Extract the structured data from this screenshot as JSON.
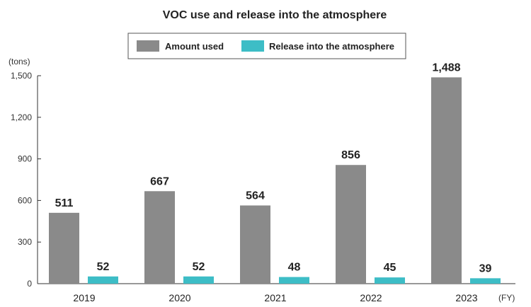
{
  "chart_data": {
    "type": "bar",
    "title": "VOC use and release into the atmosphere",
    "ylabel": "(tons)",
    "xlabel": "(FY)",
    "categories": [
      "2019",
      "2020",
      "2021",
      "2022",
      "2023"
    ],
    "series": [
      {
        "name": "Amount used",
        "color": "#8a8a8a",
        "values": [
          511,
          667,
          564,
          856,
          1488
        ],
        "labels": [
          "511",
          "667",
          "564",
          "856",
          "1,488"
        ]
      },
      {
        "name": "Release into the atmosphere",
        "color": "#3dbdc6",
        "values": [
          52,
          52,
          48,
          45,
          39
        ],
        "labels": [
          "52",
          "52",
          "48",
          "45",
          "39"
        ]
      }
    ],
    "ylim": [
      0,
      1500
    ],
    "yticks": [
      0,
      300,
      600,
      900,
      1200,
      1500
    ],
    "ytick_labels": [
      "0",
      "300",
      "600",
      "900",
      "1,200",
      "1,500"
    ],
    "grid": false,
    "legend": "top-center"
  }
}
